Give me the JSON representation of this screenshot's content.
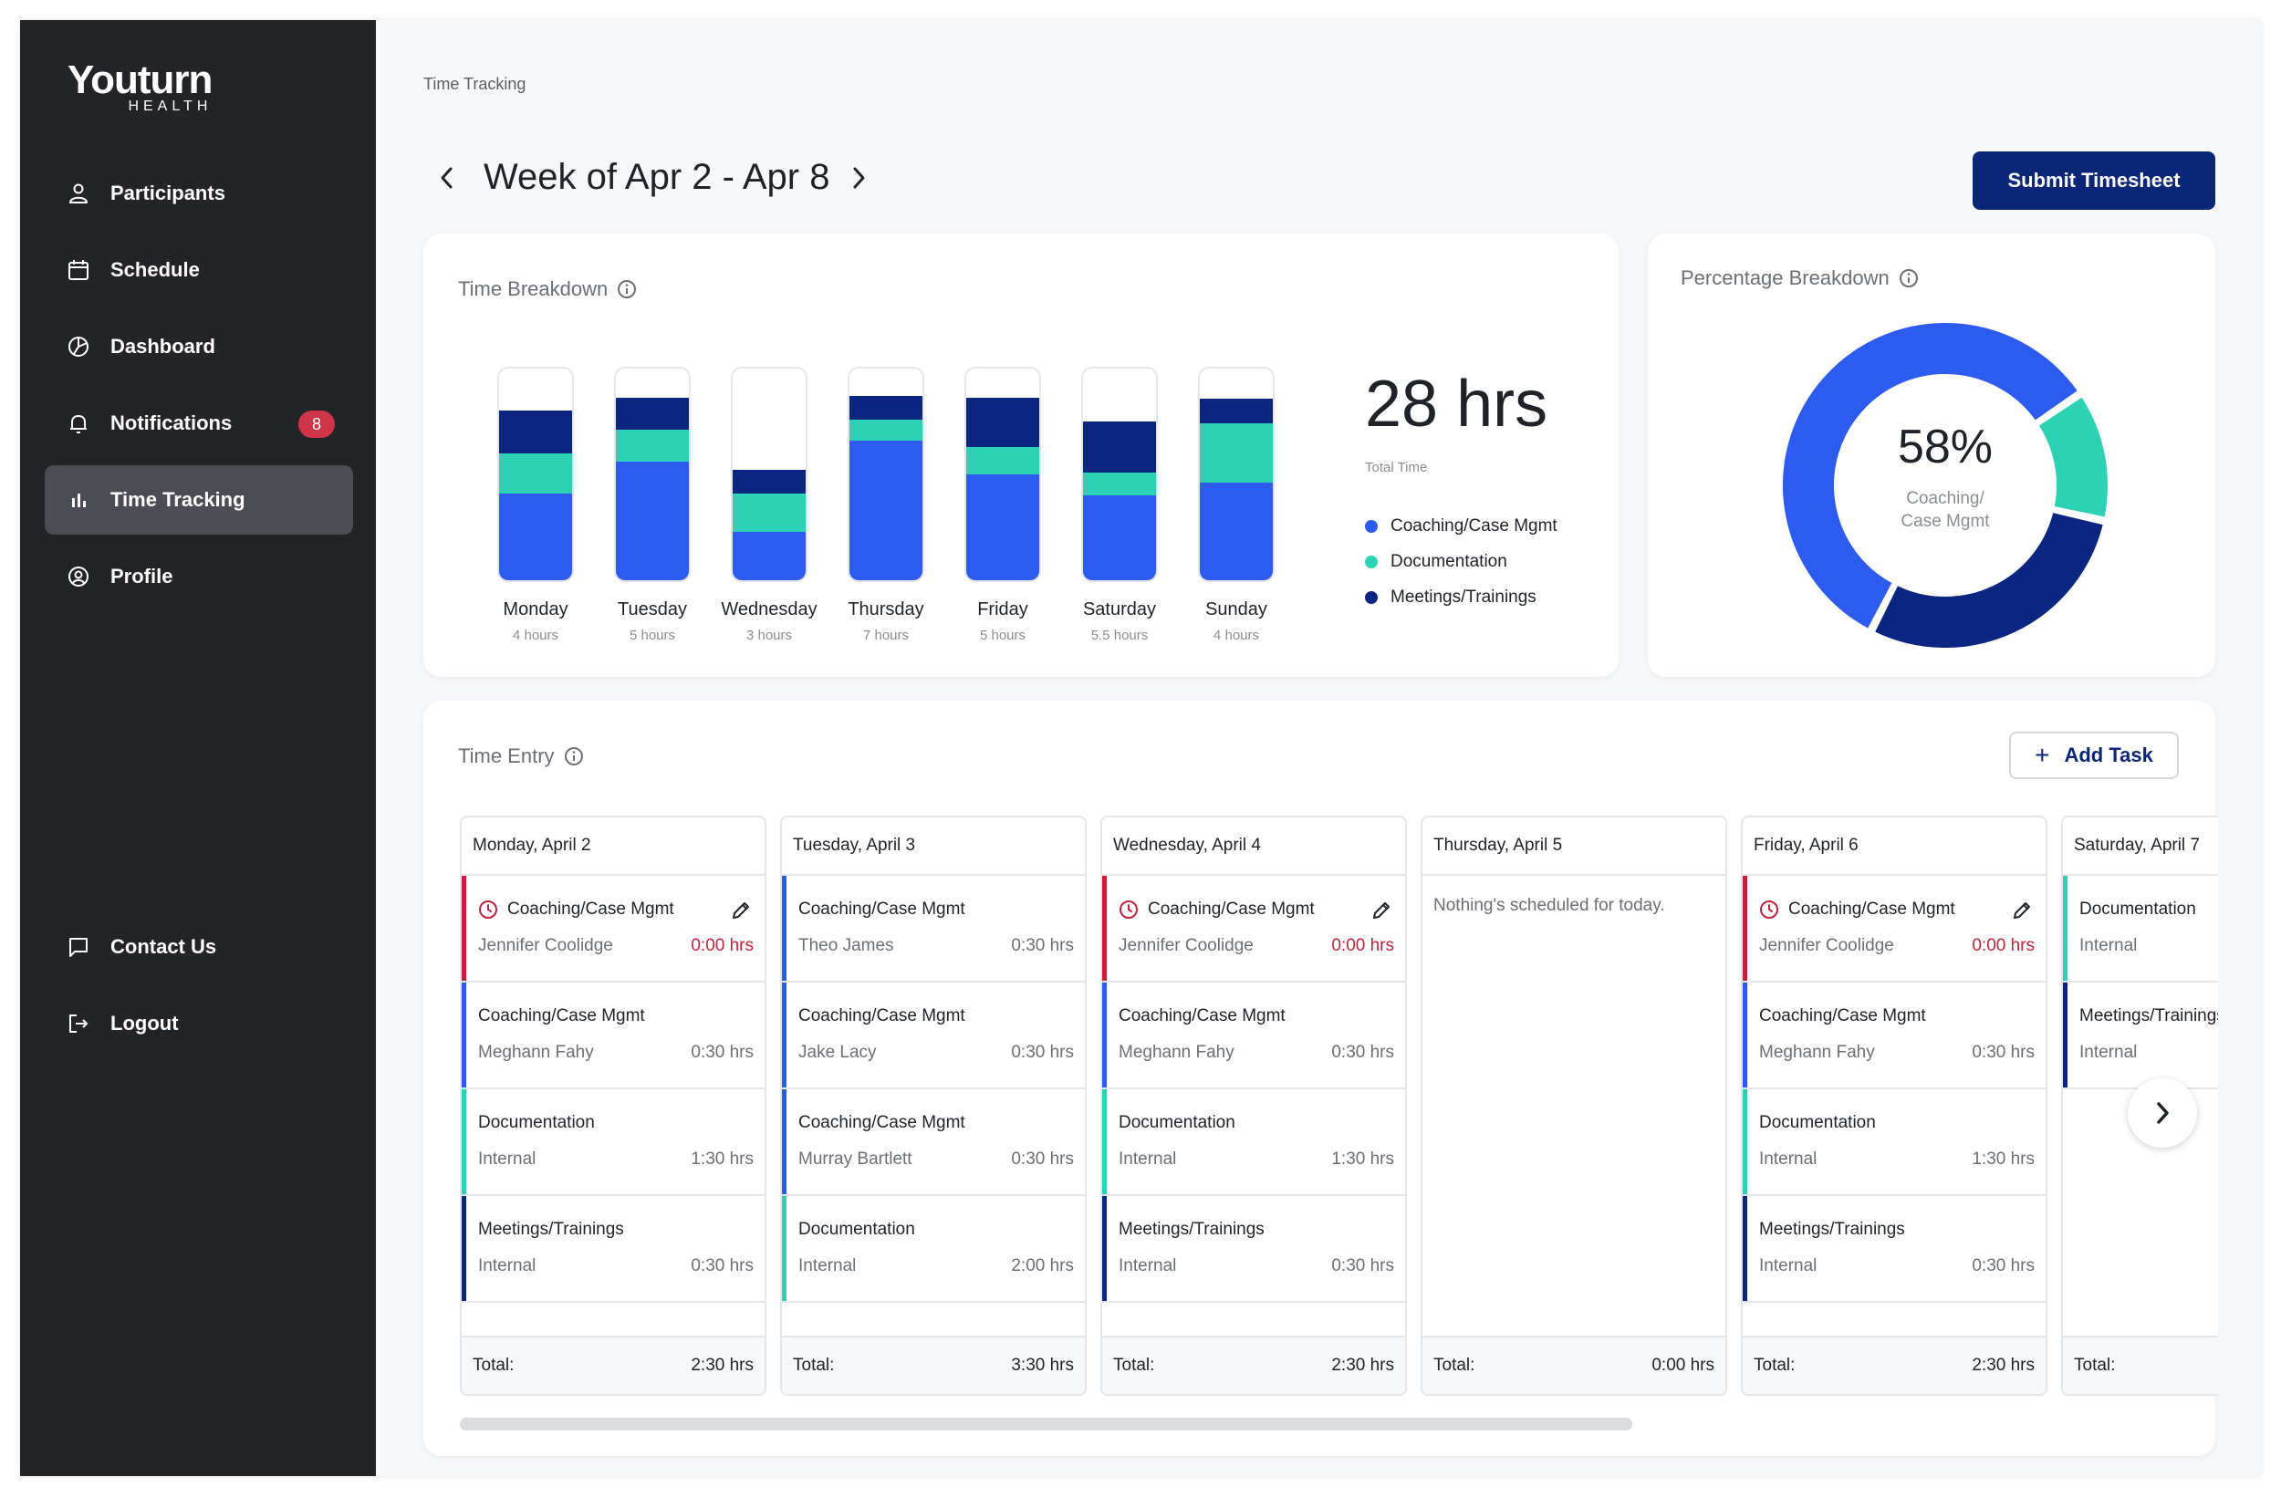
{
  "app": {
    "logo_top": "Youturn",
    "logo_bottom": "HEALTH"
  },
  "sidebar": {
    "items": [
      {
        "label": "Participants",
        "icon": "person-icon"
      },
      {
        "label": "Schedule",
        "icon": "calendar-icon"
      },
      {
        "label": "Dashboard",
        "icon": "pie-chart-icon"
      },
      {
        "label": "Notifications",
        "icon": "bell-icon",
        "badge": "8"
      },
      {
        "label": "Time Tracking",
        "icon": "bar-chart-icon",
        "active": true
      },
      {
        "label": "Profile",
        "icon": "user-circle-icon"
      }
    ],
    "footer": [
      {
        "label": "Contact Us",
        "icon": "chat-icon"
      },
      {
        "label": "Logout",
        "icon": "logout-icon"
      }
    ]
  },
  "header": {
    "breadcrumb": "Time Tracking",
    "week_title": "Week of Apr 2 - Apr 8",
    "submit_label": "Submit Timesheet"
  },
  "colors": {
    "coaching": "#2d5bf0",
    "documentation": "#2dd1b4",
    "meetings": "#0b2680",
    "alert": "#c4223c",
    "primary_button": "#0b2677"
  },
  "breakdown": {
    "title": "Time Breakdown",
    "total": "28 hrs",
    "total_label": "Total Time",
    "legend": [
      "Coaching/Case Mgmt",
      "Documentation",
      "Meetings/Trainings"
    ]
  },
  "chart_data": {
    "type": "bar",
    "stacked": true,
    "categories": [
      "Monday",
      "Tuesday",
      "Wednesday",
      "Thursday",
      "Friday",
      "Saturday",
      "Sunday"
    ],
    "category_sublabels": [
      "4 hours",
      "5 hours",
      "3 hours",
      "7 hours",
      "5 hours",
      "5.5 hours",
      "4 hours"
    ],
    "series": [
      {
        "name": "Coaching/Case Mgmt",
        "values": [
          0.41,
          0.56,
          0.23,
          0.66,
          0.5,
          0.4,
          0.46
        ]
      },
      {
        "name": "Documentation",
        "values": [
          0.19,
          0.15,
          0.18,
          0.1,
          0.13,
          0.11,
          0.28
        ]
      },
      {
        "name": "Meetings/Trainings",
        "values": [
          0.2,
          0.15,
          0.11,
          0.11,
          0.23,
          0.24,
          0.12
        ]
      }
    ]
  },
  "percentage": {
    "title": "Percentage Breakdown",
    "value": "58%",
    "label_line1": "Coaching/",
    "label_line2": "Case Mgmt",
    "slices": [
      {
        "name": "Coaching/Case Mgmt",
        "value": 58
      },
      {
        "name": "Documentation",
        "value": 13
      },
      {
        "name": "Meetings/Trainings",
        "value": 29
      }
    ]
  },
  "time_entry": {
    "title": "Time Entry",
    "add_label": "Add Task",
    "total_label": "Total:",
    "days": [
      {
        "date": "Monday, April 2",
        "total": "2:30 hrs",
        "entries": [
          {
            "category": "Coaching/Case Mgmt",
            "person": "Jennifer Coolidge",
            "hours": "0:00 hrs",
            "type": "alert",
            "editable": true
          },
          {
            "category": "Coaching/Case Mgmt",
            "person": "Meghann Fahy",
            "hours": "0:30 hrs",
            "type": "coaching"
          },
          {
            "category": "Documentation",
            "person": "Internal",
            "hours": "1:30 hrs",
            "type": "documentation"
          },
          {
            "category": "Meetings/Trainings",
            "person": "Internal",
            "hours": "0:30 hrs",
            "type": "meetings"
          }
        ]
      },
      {
        "date": "Tuesday, April 3",
        "total": "3:30 hrs",
        "entries": [
          {
            "category": "Coaching/Case Mgmt",
            "person": "Theo James",
            "hours": "0:30 hrs",
            "type": "coaching"
          },
          {
            "category": "Coaching/Case Mgmt",
            "person": "Jake Lacy",
            "hours": "0:30 hrs",
            "type": "coaching"
          },
          {
            "category": "Coaching/Case Mgmt",
            "person": "Murray Bartlett",
            "hours": "0:30 hrs",
            "type": "coaching"
          },
          {
            "category": "Documentation",
            "person": "Internal",
            "hours": "2:00 hrs",
            "type": "documentation"
          }
        ]
      },
      {
        "date": "Wednesday, April 4",
        "total": "2:30 hrs",
        "entries": [
          {
            "category": "Coaching/Case Mgmt",
            "person": "Jennifer Coolidge",
            "hours": "0:00 hrs",
            "type": "alert",
            "editable": true
          },
          {
            "category": "Coaching/Case Mgmt",
            "person": "Meghann Fahy",
            "hours": "0:30 hrs",
            "type": "coaching"
          },
          {
            "category": "Documentation",
            "person": "Internal",
            "hours": "1:30 hrs",
            "type": "documentation"
          },
          {
            "category": "Meetings/Trainings",
            "person": "Internal",
            "hours": "0:30 hrs",
            "type": "meetings"
          }
        ]
      },
      {
        "date": "Thursday, April 5",
        "total": "0:00 hrs",
        "empty_message": "Nothing's scheduled for today.",
        "entries": []
      },
      {
        "date": "Friday, April 6",
        "total": "2:30 hrs",
        "entries": [
          {
            "category": "Coaching/Case Mgmt",
            "person": "Jennifer Coolidge",
            "hours": "0:00 hrs",
            "type": "alert",
            "editable": true
          },
          {
            "category": "Coaching/Case Mgmt",
            "person": "Meghann Fahy",
            "hours": "0:30 hrs",
            "type": "coaching"
          },
          {
            "category": "Documentation",
            "person": "Internal",
            "hours": "1:30 hrs",
            "type": "documentation"
          },
          {
            "category": "Meetings/Trainings",
            "person": "Internal",
            "hours": "0:30 hrs",
            "type": "meetings"
          }
        ]
      },
      {
        "date": "Saturday, April 7",
        "total": "",
        "entries": [
          {
            "category": "Documentation",
            "person": "Internal",
            "hours": "",
            "type": "documentation"
          },
          {
            "category": "Meetings/Trainings",
            "person": "Internal",
            "hours": "",
            "type": "meetings"
          }
        ]
      }
    ]
  }
}
